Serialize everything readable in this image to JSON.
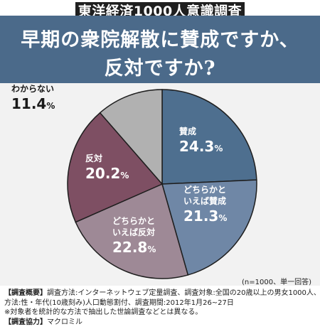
{
  "badge": "東洋経済1000人意識調査",
  "header": {
    "line1": "早期の衆院解散に賛成ですか、",
    "line2": "反対ですか?"
  },
  "sample_note": "(n=1000、単一回答)",
  "footer": {
    "method_label": "【調査概要】",
    "method_text": "調査方法:インターネットウェブ定量調査、調査対象:全国の20歳以上の男女1000人、割付",
    "method_text2": "方法:性・年代(10歳刻み)人口動態割付、調査期間:2012年1月26~27日",
    "disclaimer": "※対象者を統計的な方法で抽出した世論調査などとは異なる。",
    "coop_label": "【調査協力】",
    "coop_value": "マクロミル"
  },
  "chart_data": {
    "type": "pie",
    "title": "早期の衆院解散に賛成ですか、反対ですか?",
    "unit": "%",
    "slices": [
      {
        "label": "賛成",
        "label_lines": [
          "賛成"
        ],
        "value": 24.3,
        "color": "#4e6f8f"
      },
      {
        "label": "どちらかといえば賛成",
        "label_lines": [
          "どちらかと",
          "いえば賛成"
        ],
        "value": 21.3,
        "color": "#6f87a6"
      },
      {
        "label": "どちらかといえば反対",
        "label_lines": [
          "どちらかと",
          "いえば反対"
        ],
        "value": 22.8,
        "color": "#9e8996"
      },
      {
        "label": "反対",
        "label_lines": [
          "反対"
        ],
        "value": 20.2,
        "color": "#7e4f63"
      },
      {
        "label": "わからない",
        "label_lines": [
          "わからない"
        ],
        "value": 11.4,
        "color": "#b1b1b1"
      }
    ]
  }
}
